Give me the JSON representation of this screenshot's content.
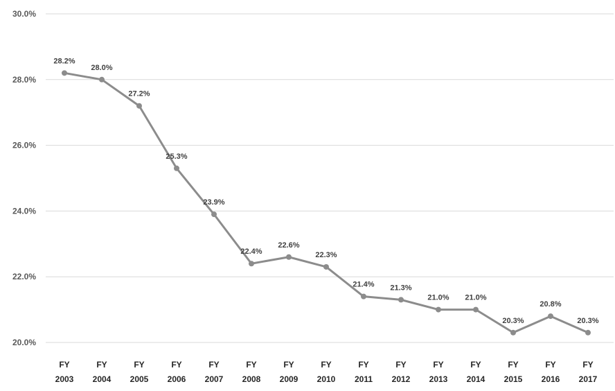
{
  "chart_data": {
    "type": "line",
    "categories": [
      [
        "FY",
        "2003"
      ],
      [
        "FY",
        "2004"
      ],
      [
        "FY",
        "2005"
      ],
      [
        "FY",
        "2006"
      ],
      [
        "FY",
        "2007"
      ],
      [
        "FY",
        "2008"
      ],
      [
        "FY",
        "2009"
      ],
      [
        "FY",
        "2010"
      ],
      [
        "FY",
        "2011"
      ],
      [
        "FY",
        "2012"
      ],
      [
        "FY",
        "2013"
      ],
      [
        "FY",
        "2014"
      ],
      [
        "FY",
        "2015"
      ],
      [
        "FY",
        "2016"
      ],
      [
        "FY",
        "2017"
      ]
    ],
    "series": [
      {
        "values": [
          28.2,
          28.0,
          27.2,
          25.3,
          23.9,
          22.4,
          22.6,
          22.3,
          21.4,
          21.3,
          21.0,
          21.0,
          20.3,
          20.8,
          20.3
        ],
        "data_labels": [
          "28.2%",
          "28.0%",
          "27.2%",
          "25.3%",
          "23.9%",
          "22.4%",
          "22.6%",
          "22.3%",
          "21.4%",
          "21.3%",
          "21.0%",
          "21.0%",
          "20.3%",
          "20.8%",
          "20.3%"
        ],
        "color": "#8c8c8c"
      }
    ],
    "y_ticks": [
      20.0,
      22.0,
      24.0,
      26.0,
      28.0,
      30.0
    ],
    "y_tick_labels": [
      "20.0%",
      "22.0%",
      "24.0%",
      "26.0%",
      "28.0%",
      "30.0%"
    ],
    "ylim": [
      20.0,
      30.0
    ],
    "grid": true,
    "grid_color": "#d9d9d9",
    "legend": "none"
  }
}
